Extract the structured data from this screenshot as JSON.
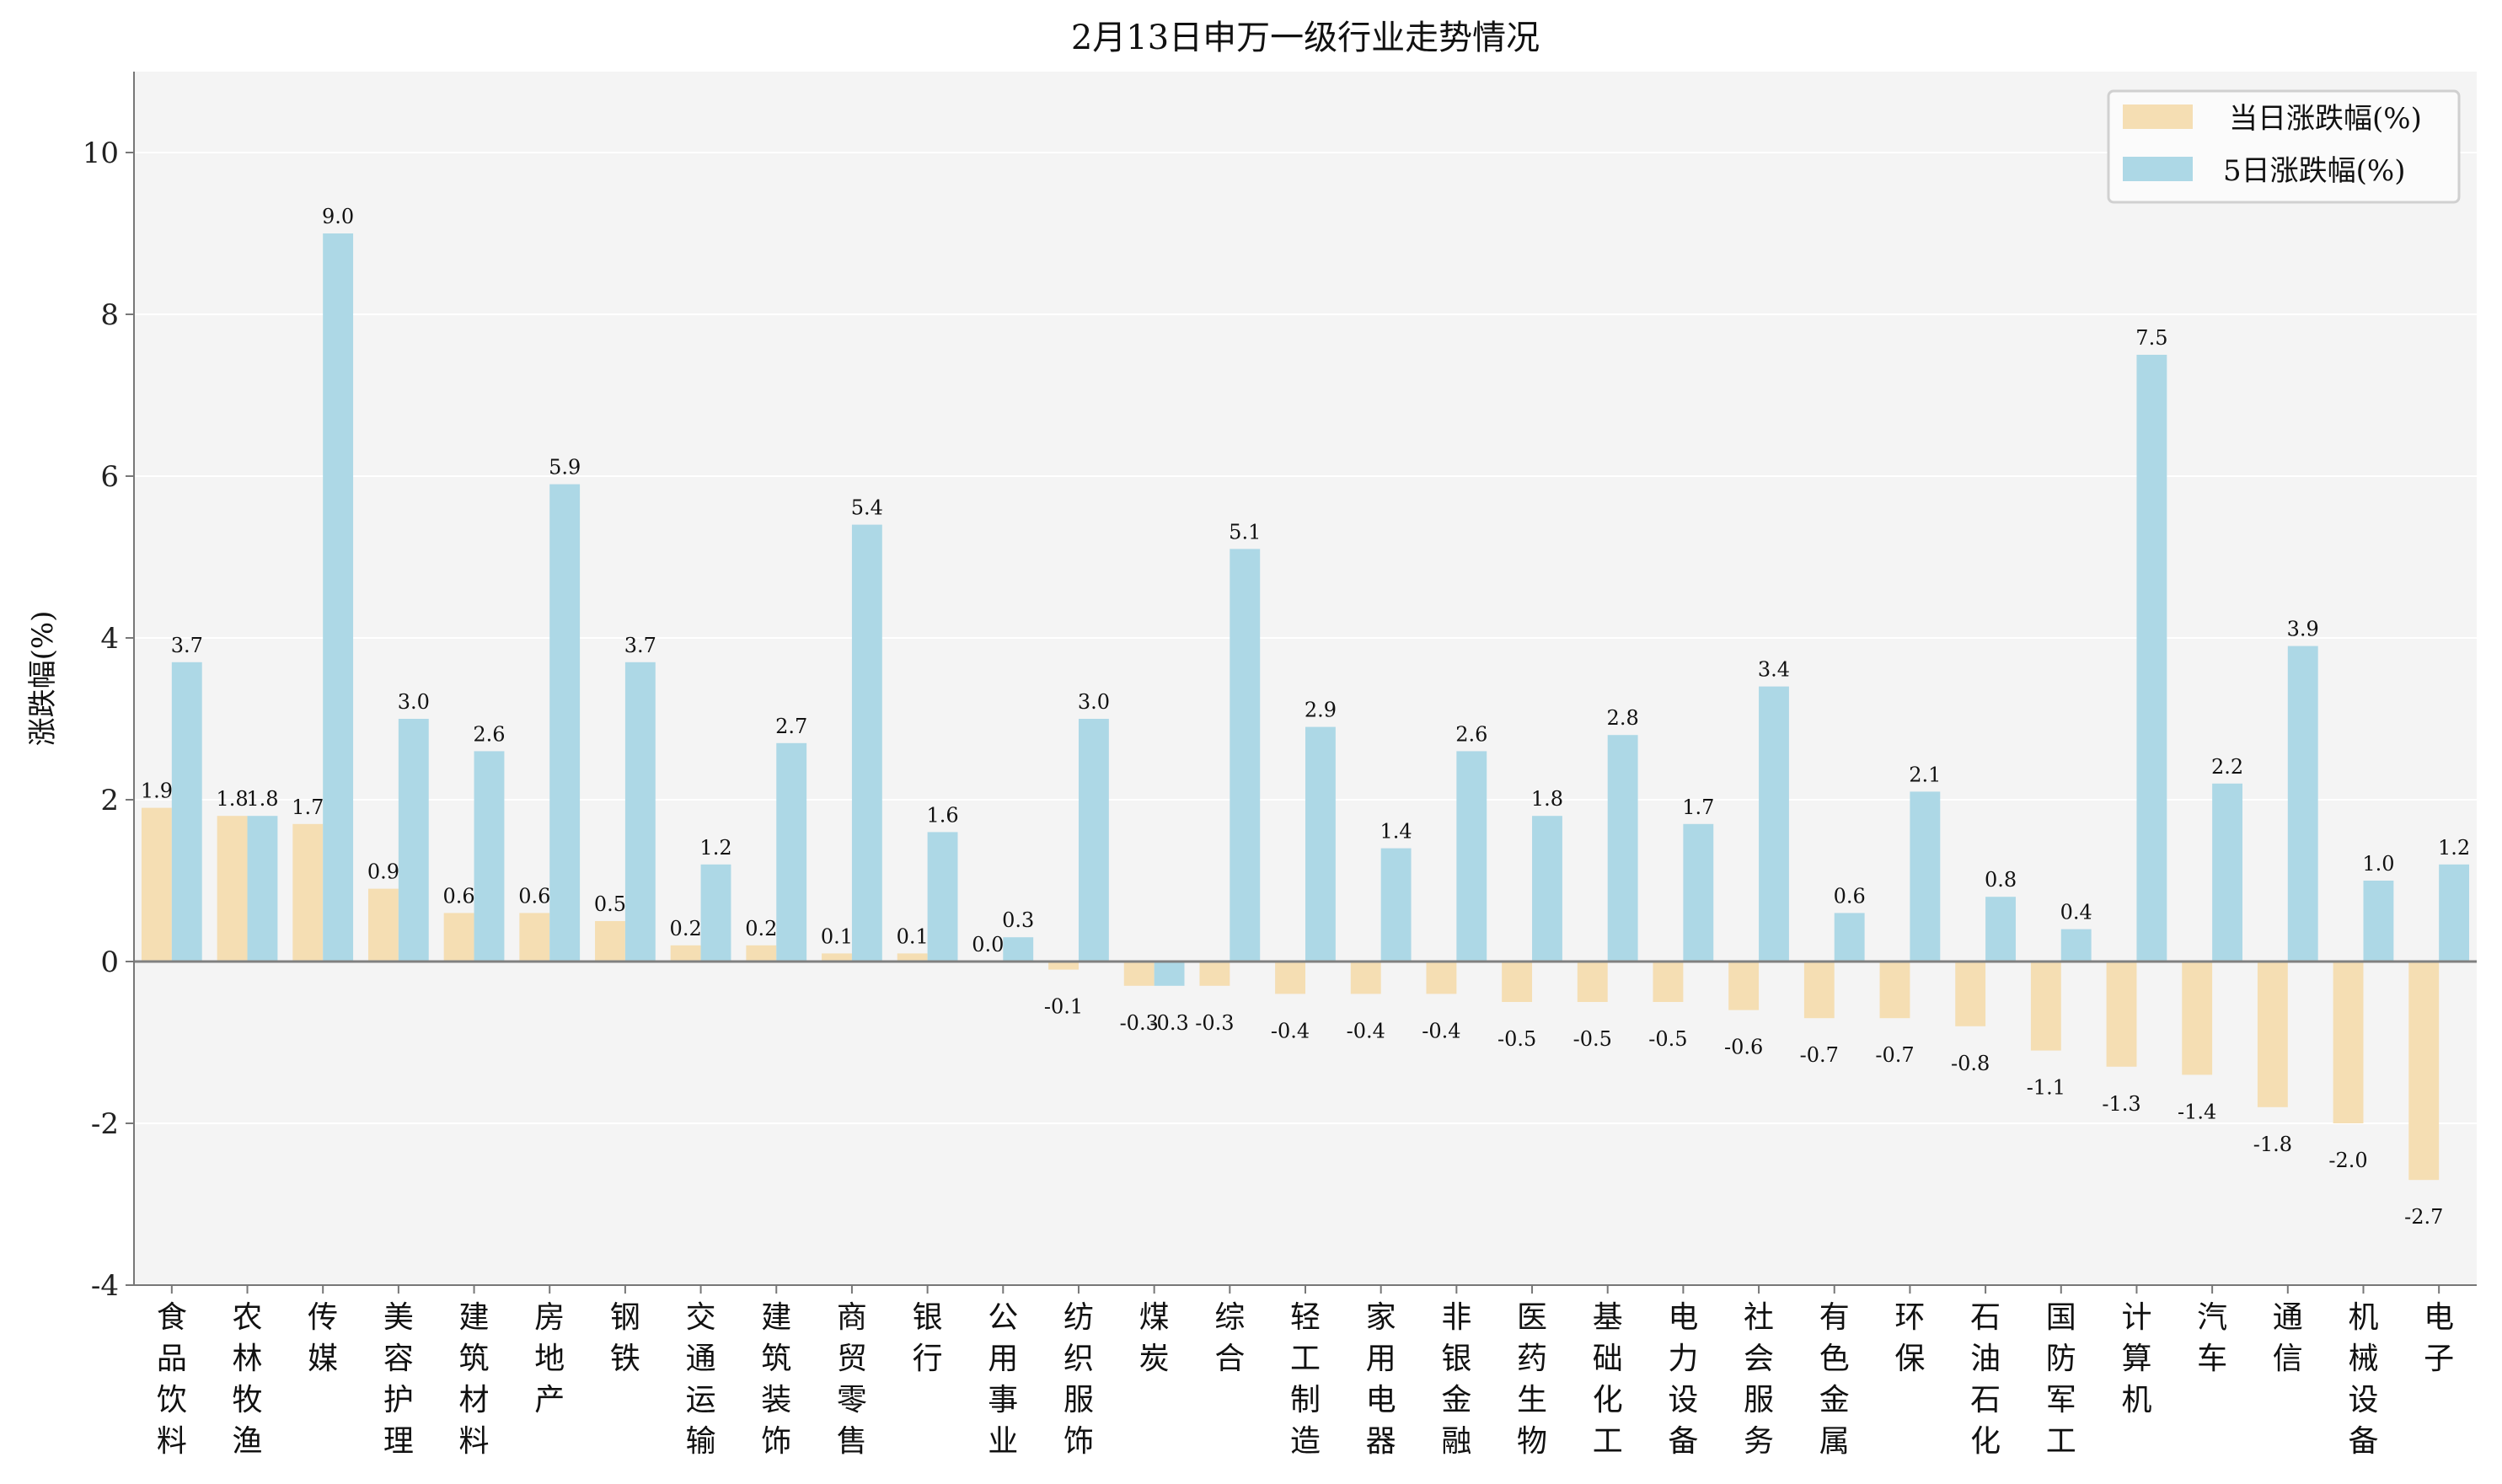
{
  "chart_data": {
    "type": "bar",
    "title": "2月13日申万一级行业走势情况",
    "xlabel": "",
    "ylabel": "涨跌幅(%)",
    "ylim": [
      -4,
      11
    ],
    "yticks": [
      -4,
      -2,
      0,
      2,
      4,
      6,
      8,
      10
    ],
    "grid": true,
    "legend_position": "top-right",
    "categories": [
      "食品饮料",
      "农林牧渔",
      "传媒",
      "美容护理",
      "建筑材料",
      "房地产",
      "钢铁",
      "交通运输",
      "建筑装饰",
      "商贸零售",
      "银行",
      "公用事业",
      "纺织服饰",
      "煤炭",
      "综合",
      "轻工制造",
      "家用电器",
      "非银金融",
      "医药生物",
      "基础化工",
      "电力设备",
      "社会服务",
      "有色金属",
      "环保",
      "石油石化",
      "国防军工",
      "计算机",
      "汽车",
      "通信",
      "机械设备",
      "电子"
    ],
    "series": [
      {
        "name": "当日涨跌幅(%)",
        "color": "#f5deb3",
        "values": [
          1.9,
          1.8,
          1.7,
          0.9,
          0.6,
          0.6,
          0.5,
          0.2,
          0.2,
          0.1,
          0.1,
          0.0,
          -0.1,
          -0.3,
          -0.3,
          -0.4,
          -0.4,
          -0.4,
          -0.5,
          -0.5,
          -0.5,
          -0.6,
          -0.7,
          -0.7,
          -0.8,
          -1.1,
          -1.3,
          -1.4,
          -1.8,
          -2.0,
          -2.7
        ]
      },
      {
        "name": "5日涨跌幅(%)",
        "color": "#add8e6",
        "values": [
          3.7,
          1.8,
          9.0,
          3.0,
          2.6,
          5.9,
          3.7,
          1.2,
          2.7,
          5.4,
          1.6,
          0.3,
          3.0,
          -0.3,
          5.1,
          2.9,
          1.4,
          2.6,
          1.8,
          2.8,
          1.7,
          3.4,
          0.6,
          2.1,
          0.8,
          0.4,
          7.5,
          2.2,
          3.9,
          1.0,
          1.2
        ]
      }
    ]
  }
}
